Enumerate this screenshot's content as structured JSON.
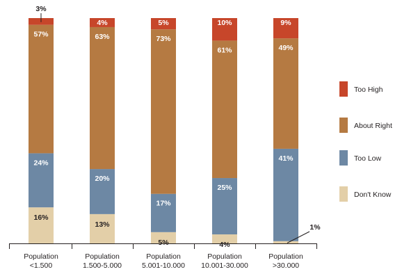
{
  "chart_data": {
    "type": "bar",
    "stacked": true,
    "categories": [
      [
        "Population",
        "<1.500"
      ],
      [
        "Population",
        "1.500-5.000"
      ],
      [
        "Population",
        "5.001-10.000"
      ],
      [
        "Population",
        "10.001-30.000"
      ],
      [
        "Population",
        ">30.000"
      ]
    ],
    "series": [
      {
        "name": "Don't Know",
        "color": "#e3cfa8",
        "values": [
          16,
          13,
          5,
          4,
          1
        ]
      },
      {
        "name": "Too Low",
        "color": "#6d88a4",
        "values": [
          24,
          20,
          17,
          25,
          41
        ]
      },
      {
        "name": "About Right",
        "color": "#b57a42",
        "values": [
          57,
          63,
          73,
          61,
          49
        ]
      },
      {
        "name": "Too High",
        "color": "#c7462a",
        "values": [
          3,
          4,
          5,
          10,
          9
        ]
      }
    ],
    "value_suffix": "%",
    "ylim": [
      0,
      100
    ],
    "grid": false,
    "legend_position": "right",
    "legend_order": [
      "Too High",
      "About Right",
      "Too Low",
      "Don't Know"
    ]
  }
}
